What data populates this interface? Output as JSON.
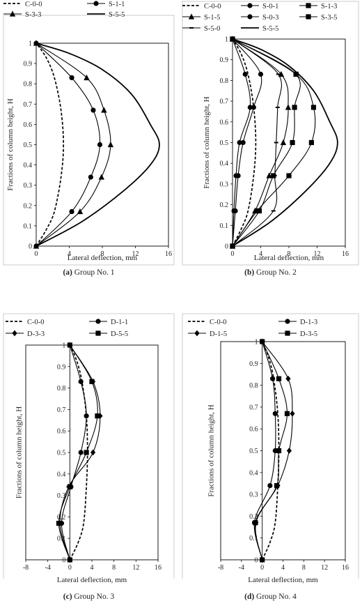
{
  "chart_data": [
    {
      "type": "line",
      "caption_prefix": "(a)",
      "caption_text": "Group No. 1",
      "xlabel": "Lateral deflection, mm",
      "ylabel": "Fractions of column height, H",
      "xlim": [
        0,
        16
      ],
      "ylim": [
        0,
        1
      ],
      "xticks": [
        "0",
        "4",
        "8",
        "12",
        "16"
      ],
      "yticks": [
        "0",
        "0.1",
        "0.2",
        "0.3",
        "0.4",
        "0.5",
        "0.6",
        "0.7",
        "0.8",
        "0.9",
        "1"
      ],
      "legend_columns": 2,
      "series": [
        {
          "name": "C-0-0",
          "style": "dashed",
          "marker": "none",
          "points": [
            [
              0,
              0
            ],
            [
              1.2,
              0.08
            ],
            [
              2.2,
              0.17
            ],
            [
              3.0,
              0.34
            ],
            [
              3.3,
              0.5
            ],
            [
              3.0,
              0.67
            ],
            [
              2.2,
              0.83
            ],
            [
              1.2,
              0.93
            ],
            [
              0,
              1
            ]
          ]
        },
        {
          "name": "S-1-1",
          "style": "solid",
          "marker": "circle",
          "points": [
            [
              0,
              0
            ],
            [
              4.3,
              0.17
            ],
            [
              6.6,
              0.34
            ],
            [
              7.7,
              0.5
            ],
            [
              6.9,
              0.67
            ],
            [
              4.3,
              0.83
            ],
            [
              0,
              1
            ]
          ]
        },
        {
          "name": "S-3-3",
          "style": "solid",
          "marker": "triangle",
          "points": [
            [
              0,
              0
            ],
            [
              5.3,
              0.17
            ],
            [
              7.9,
              0.34
            ],
            [
              9.0,
              0.5
            ],
            [
              8.2,
              0.67
            ],
            [
              6.1,
              0.83
            ],
            [
              0,
              1
            ]
          ]
        },
        {
          "name": "S-5-5",
          "style": "solid-thick",
          "marker": "none",
          "points": [
            [
              0,
              0
            ],
            [
              5.5,
              0.12
            ],
            [
              10.5,
              0.27
            ],
            [
              13.8,
              0.4
            ],
            [
              14.9,
              0.5
            ],
            [
              13.8,
              0.6
            ],
            [
              11.5,
              0.75
            ],
            [
              8.0,
              0.87
            ],
            [
              4.0,
              0.95
            ],
            [
              0,
              1
            ]
          ]
        }
      ]
    },
    {
      "type": "line",
      "caption_prefix": "(b)",
      "caption_text": "Group No. 2",
      "xlabel": "Lateral deflection, mm",
      "ylabel": "Fractions of column height, H",
      "xlim": [
        0,
        16
      ],
      "ylim": [
        0,
        1
      ],
      "xticks": [
        "0",
        "4",
        "8",
        "12",
        "16"
      ],
      "yticks": [
        "0",
        "0.1",
        "0.2",
        "0.3",
        "0.4",
        "0.5",
        "0.6",
        "0.7",
        "0.8",
        "0.9",
        "1"
      ],
      "legend_columns": 3,
      "series": [
        {
          "name": "C-0-0",
          "style": "dashed",
          "marker": "none",
          "points": [
            [
              0,
              0
            ],
            [
              1.2,
              0.08
            ],
            [
              2.2,
              0.17
            ],
            [
              3.0,
              0.34
            ],
            [
              3.3,
              0.5
            ],
            [
              3.0,
              0.67
            ],
            [
              2.2,
              0.83
            ],
            [
              1.2,
              0.93
            ],
            [
              0,
              1
            ]
          ]
        },
        {
          "name": "S-0-1",
          "style": "solid",
          "marker": "circle",
          "points": [
            [
              0,
              0
            ],
            [
              0.2,
              0.17
            ],
            [
              0.5,
              0.34
            ],
            [
              1.0,
              0.5
            ],
            [
              2.5,
              0.67
            ],
            [
              1.8,
              0.83
            ],
            [
              0,
              1
            ]
          ]
        },
        {
          "name": "S-1-3",
          "style": "solid",
          "marker": "square",
          "points": [
            [
              0,
              0
            ],
            [
              3.8,
              0.17
            ],
            [
              5.8,
              0.34
            ],
            [
              8.5,
              0.5
            ],
            [
              8.8,
              0.67
            ],
            [
              9.0,
              0.83
            ],
            [
              0,
              1
            ]
          ]
        },
        {
          "name": "S-1-5",
          "style": "solid",
          "marker": "triangle",
          "points": [
            [
              0,
              0
            ],
            [
              3.2,
              0.17
            ],
            [
              5.2,
              0.34
            ],
            [
              7.2,
              0.5
            ],
            [
              7.9,
              0.67
            ],
            [
              6.9,
              0.83
            ],
            [
              0,
              1
            ]
          ]
        },
        {
          "name": "S-0-3",
          "style": "solid",
          "marker": "circle",
          "points": [
            [
              0,
              0
            ],
            [
              0.4,
              0.17
            ],
            [
              0.8,
              0.34
            ],
            [
              1.5,
              0.5
            ],
            [
              3.0,
              0.67
            ],
            [
              4.0,
              0.83
            ],
            [
              0,
              1
            ]
          ]
        },
        {
          "name": "S-3-5",
          "style": "solid",
          "marker": "square",
          "points": [
            [
              0,
              0
            ],
            [
              3.5,
              0.17
            ],
            [
              8.0,
              0.34
            ],
            [
              11.2,
              0.5
            ],
            [
              11.5,
              0.67
            ],
            [
              9.0,
              0.83
            ],
            [
              0,
              1
            ]
          ]
        },
        {
          "name": "S-5-0",
          "style": "solid",
          "marker": "dash",
          "points": [
            [
              0,
              0
            ],
            [
              5.8,
              0.17
            ],
            [
              6.0,
              0.34
            ],
            [
              6.2,
              0.5
            ],
            [
              6.4,
              0.67
            ],
            [
              6.5,
              0.83
            ],
            [
              0,
              1
            ]
          ]
        },
        {
          "name": "S-5-5",
          "style": "solid-thick",
          "marker": "none",
          "points": [
            [
              0,
              0
            ],
            [
              5.5,
              0.12
            ],
            [
              10.5,
              0.27
            ],
            [
              13.8,
              0.4
            ],
            [
              14.9,
              0.5
            ],
            [
              13.8,
              0.6
            ],
            [
              11.5,
              0.75
            ],
            [
              8.0,
              0.87
            ],
            [
              4.0,
              0.95
            ],
            [
              0,
              1
            ]
          ]
        }
      ]
    },
    {
      "type": "line",
      "caption_prefix": "(c)",
      "caption_text": "Group No. 3",
      "xlabel": "Lateral deflection, mm",
      "ylabel": "Fractions of column height, H",
      "xlim": [
        -8,
        16
      ],
      "ylim": [
        0,
        1
      ],
      "xticks": [
        "-8",
        "-4",
        "0",
        "4",
        "8",
        "12",
        "16"
      ],
      "yticks": [
        "0",
        "0.1",
        "0.2",
        "0.3",
        "0.4",
        "0.5",
        "0.6",
        "0.7",
        "0.8",
        "0.9",
        "1"
      ],
      "legend_columns": 2,
      "series": [
        {
          "name": "C-0-0",
          "style": "dashed",
          "marker": "none",
          "points": [
            [
              0,
              0
            ],
            [
              1.5,
              0.08
            ],
            [
              2.5,
              0.17
            ],
            [
              3.0,
              0.34
            ],
            [
              3.2,
              0.5
            ],
            [
              3.0,
              0.67
            ],
            [
              2.2,
              0.83
            ],
            [
              1.2,
              0.93
            ],
            [
              0,
              1
            ]
          ]
        },
        {
          "name": "D-1-1",
          "style": "solid",
          "marker": "circle",
          "points": [
            [
              0,
              0
            ],
            [
              -1.5,
              0.17
            ],
            [
              0.2,
              0.34
            ],
            [
              2.0,
              0.5
            ],
            [
              3.0,
              0.67
            ],
            [
              2.0,
              0.83
            ],
            [
              0,
              1
            ]
          ]
        },
        {
          "name": "D-3-3",
          "style": "solid",
          "marker": "diamond",
          "points": [
            [
              0,
              0
            ],
            [
              -1.8,
              0.17
            ],
            [
              -0.2,
              0.34
            ],
            [
              4.2,
              0.5
            ],
            [
              5.5,
              0.67
            ],
            [
              4.2,
              0.83
            ],
            [
              0,
              1
            ]
          ]
        },
        {
          "name": "D-5-5",
          "style": "solid",
          "marker": "square",
          "points": [
            [
              0,
              0
            ],
            [
              -2.0,
              0.17
            ],
            [
              0.0,
              0.34
            ],
            [
              3.0,
              0.5
            ],
            [
              5.0,
              0.67
            ],
            [
              4.0,
              0.83
            ],
            [
              0,
              1
            ]
          ]
        }
      ]
    },
    {
      "type": "line",
      "caption_prefix": "(d)",
      "caption_text": "Group No. 4",
      "xlabel": "Lateral deflection, mm",
      "ylabel": "Fractions of column height, H",
      "xlim": [
        -8,
        16
      ],
      "ylim": [
        0,
        1
      ],
      "xticks": [
        "-8",
        "-4",
        "0",
        "4",
        "8",
        "12",
        "16"
      ],
      "yticks": [
        "0",
        "0.1",
        "0.2",
        "0.3",
        "0.4",
        "0.5",
        "0.6",
        "0.7",
        "0.8",
        "0.9",
        "1"
      ],
      "legend_columns": 2,
      "series": [
        {
          "name": "C-0-0",
          "style": "dashed",
          "marker": "none",
          "points": [
            [
              0,
              0
            ],
            [
              1.5,
              0.08
            ],
            [
              2.5,
              0.17
            ],
            [
              3.0,
              0.34
            ],
            [
              3.2,
              0.5
            ],
            [
              3.0,
              0.67
            ],
            [
              2.2,
              0.83
            ],
            [
              1.2,
              0.93
            ],
            [
              0,
              1
            ]
          ]
        },
        {
          "name": "D-1-3",
          "style": "solid",
          "marker": "circle",
          "points": [
            [
              0,
              0
            ],
            [
              -1.5,
              0.17
            ],
            [
              1.5,
              0.34
            ],
            [
              2.5,
              0.5
            ],
            [
              2.5,
              0.67
            ],
            [
              2.0,
              0.83
            ],
            [
              0,
              1
            ]
          ]
        },
        {
          "name": "D-1-5",
          "style": "solid",
          "marker": "diamond",
          "points": [
            [
              0,
              0
            ],
            [
              -1.2,
              0.17
            ],
            [
              3.0,
              0.34
            ],
            [
              5.2,
              0.5
            ],
            [
              5.8,
              0.67
            ],
            [
              5.0,
              0.83
            ],
            [
              0,
              1
            ]
          ]
        },
        {
          "name": "D-3-5",
          "style": "solid",
          "marker": "square",
          "points": [
            [
              0,
              0
            ],
            [
              -1.3,
              0.17
            ],
            [
              2.8,
              0.34
            ],
            [
              3.2,
              0.5
            ],
            [
              4.8,
              0.67
            ],
            [
              3.2,
              0.83
            ],
            [
              0,
              1
            ]
          ]
        }
      ]
    }
  ]
}
